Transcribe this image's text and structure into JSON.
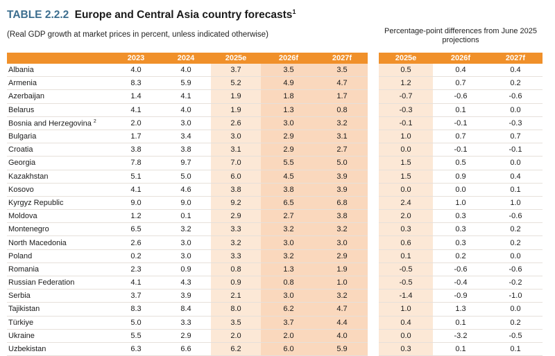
{
  "header": {
    "table_number": "TABLE 2.2.2",
    "title": "Europe and Central Asia country forecasts",
    "title_note": "1",
    "subtitle": "(Real GDP growth at market prices in percent, unless indicated otherwise)",
    "differences_heading": "Percentage-point differences from June 2025 projections"
  },
  "main_columns": [
    "",
    "2023",
    "2024",
    "2025e",
    "2026f",
    "2027f"
  ],
  "diff_columns": [
    "2025e",
    "2026f",
    "2027f"
  ],
  "rows": [
    {
      "country": "Albania",
      "note": "",
      "values": [
        "4.0",
        "4.0",
        "3.7",
        "3.5",
        "3.5"
      ],
      "diffs": [
        "0.5",
        "0.4",
        "0.4"
      ]
    },
    {
      "country": "Armenia",
      "note": "",
      "values": [
        "8.3",
        "5.9",
        "5.2",
        "4.9",
        "4.7"
      ],
      "diffs": [
        "1.2",
        "0.7",
        "0.2"
      ]
    },
    {
      "country": "Azerbaijan",
      "note": "",
      "values": [
        "1.4",
        "4.1",
        "1.9",
        "1.8",
        "1.7"
      ],
      "diffs": [
        "-0.7",
        "-0.6",
        "-0.6"
      ]
    },
    {
      "country": "Belarus",
      "note": "",
      "values": [
        "4.1",
        "4.0",
        "1.9",
        "1.3",
        "0.8"
      ],
      "diffs": [
        "-0.3",
        "0.1",
        "0.0"
      ]
    },
    {
      "country": "Bosnia and Herzegovina",
      "note": "2",
      "values": [
        "2.0",
        "3.0",
        "2.6",
        "3.0",
        "3.2"
      ],
      "diffs": [
        "-0.1",
        "-0.1",
        "-0.3"
      ]
    },
    {
      "country": "Bulgaria",
      "note": "",
      "values": [
        "1.7",
        "3.4",
        "3.0",
        "2.9",
        "3.1"
      ],
      "diffs": [
        "1.0",
        "0.7",
        "0.7"
      ]
    },
    {
      "country": "Croatia",
      "note": "",
      "values": [
        "3.8",
        "3.8",
        "3.1",
        "2.9",
        "2.7"
      ],
      "diffs": [
        "0.0",
        "-0.1",
        "-0.1"
      ]
    },
    {
      "country": "Georgia",
      "note": "",
      "values": [
        "7.8",
        "9.7",
        "7.0",
        "5.5",
        "5.0"
      ],
      "diffs": [
        "1.5",
        "0.5",
        "0.0"
      ]
    },
    {
      "country": "Kazakhstan",
      "note": "",
      "values": [
        "5.1",
        "5.0",
        "6.0",
        "4.5",
        "3.9"
      ],
      "diffs": [
        "1.5",
        "0.9",
        "0.4"
      ]
    },
    {
      "country": "Kosovo",
      "note": "",
      "values": [
        "4.1",
        "4.6",
        "3.8",
        "3.8",
        "3.9"
      ],
      "diffs": [
        "0.0",
        "0.0",
        "0.1"
      ]
    },
    {
      "country": "Kyrgyz Republic",
      "note": "",
      "values": [
        "9.0",
        "9.0",
        "9.2",
        "6.5",
        "6.8"
      ],
      "diffs": [
        "2.4",
        "1.0",
        "1.0"
      ]
    },
    {
      "country": "Moldova",
      "note": "",
      "values": [
        "1.2",
        "0.1",
        "2.9",
        "2.7",
        "3.8"
      ],
      "diffs": [
        "2.0",
        "0.3",
        "-0.6"
      ]
    },
    {
      "country": "Montenegro",
      "note": "",
      "values": [
        "6.5",
        "3.2",
        "3.3",
        "3.2",
        "3.2"
      ],
      "diffs": [
        "0.3",
        "0.3",
        "0.2"
      ]
    },
    {
      "country": "North Macedonia",
      "note": "",
      "values": [
        "2.6",
        "3.0",
        "3.2",
        "3.0",
        "3.0"
      ],
      "diffs": [
        "0.6",
        "0.3",
        "0.2"
      ]
    },
    {
      "country": "Poland",
      "note": "",
      "values": [
        "0.2",
        "3.0",
        "3.3",
        "3.2",
        "2.9"
      ],
      "diffs": [
        "0.1",
        "0.2",
        "0.0"
      ]
    },
    {
      "country": "Romania",
      "note": "",
      "values": [
        "2.3",
        "0.9",
        "0.8",
        "1.3",
        "1.9"
      ],
      "diffs": [
        "-0.5",
        "-0.6",
        "-0.6"
      ]
    },
    {
      "country": "Russian Federation",
      "note": "",
      "values": [
        "4.1",
        "4.3",
        "0.9",
        "0.8",
        "1.0"
      ],
      "diffs": [
        "-0.5",
        "-0.4",
        "-0.2"
      ]
    },
    {
      "country": "Serbia",
      "note": "",
      "values": [
        "3.7",
        "3.9",
        "2.1",
        "3.0",
        "3.2"
      ],
      "diffs": [
        "-1.4",
        "-0.9",
        "-1.0"
      ]
    },
    {
      "country": "Tajikistan",
      "note": "",
      "values": [
        "8.3",
        "8.4",
        "8.0",
        "6.2",
        "4.7"
      ],
      "diffs": [
        "1.0",
        "1.3",
        "0.0"
      ]
    },
    {
      "country": "Türkiye",
      "note": "",
      "values": [
        "5.0",
        "3.3",
        "3.5",
        "3.7",
        "4.4"
      ],
      "diffs": [
        "0.4",
        "0.1",
        "0.2"
      ]
    },
    {
      "country": "Ukraine",
      "note": "",
      "values": [
        "5.5",
        "2.9",
        "2.0",
        "2.0",
        "4.0"
      ],
      "diffs": [
        "0.0",
        "-3.2",
        "-0.5"
      ]
    },
    {
      "country": "Uzbekistan",
      "note": "",
      "values": [
        "6.3",
        "6.6",
        "6.2",
        "6.0",
        "5.9"
      ],
      "diffs": [
        "0.3",
        "0.1",
        "0.1"
      ]
    }
  ],
  "colors": {
    "header_orange": "#f0902a",
    "shade_light": "#fce8d6",
    "shade_medium": "#fad8bd",
    "table_number_blue": "#3c6e8f"
  }
}
